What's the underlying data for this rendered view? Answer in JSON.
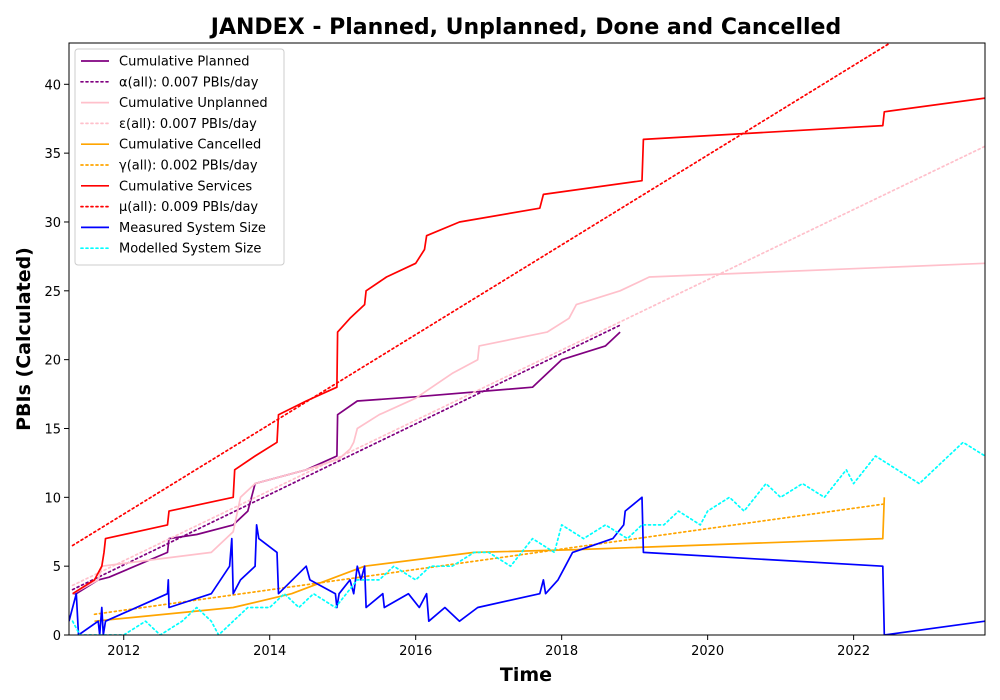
{
  "chart_data": {
    "type": "line",
    "title": "JANDEX - Planned, Unplanned, Done  and Cancelled",
    "xlabel": "Time",
    "ylabel": "PBIs (Calculated)",
    "xlim": [
      2011.25,
      2023.8
    ],
    "ylim": [
      0,
      43
    ],
    "x_ticks": [
      2012,
      2014,
      2016,
      2018,
      2020,
      2022
    ],
    "y_ticks": [
      0,
      5,
      10,
      15,
      20,
      25,
      30,
      35,
      40
    ],
    "legend_position": "top-left",
    "grid": false,
    "series": [
      {
        "name": "Cumulative Planned",
        "color": "#800080",
        "style": "solid",
        "points": [
          [
            2011.3,
            3
          ],
          [
            2011.35,
            3
          ],
          [
            2011.65,
            4
          ],
          [
            2011.8,
            4.2
          ],
          [
            2012.6,
            6
          ],
          [
            2012.62,
            7
          ],
          [
            2013.0,
            7.3
          ],
          [
            2013.5,
            8
          ],
          [
            2013.7,
            9
          ],
          [
            2013.75,
            10
          ],
          [
            2013.8,
            11
          ],
          [
            2014.5,
            12
          ],
          [
            2014.92,
            13
          ],
          [
            2014.93,
            16
          ],
          [
            2015.2,
            17
          ],
          [
            2016.0,
            17.3
          ],
          [
            2017.6,
            18
          ],
          [
            2018.0,
            20
          ],
          [
            2018.6,
            21
          ],
          [
            2018.8,
            22
          ]
        ]
      },
      {
        "name": "α(all): 0.007 PBIs/day",
        "color": "#800080",
        "style": "dotted",
        "points": [
          [
            2011.3,
            3.3
          ],
          [
            2018.8,
            22.5
          ]
        ]
      },
      {
        "name": "Cumulative Unplanned",
        "color": "#ffc0cb",
        "style": "solid",
        "points": [
          [
            2011.3,
            3
          ],
          [
            2011.65,
            4
          ],
          [
            2011.7,
            5
          ],
          [
            2012.0,
            5.2
          ],
          [
            2012.6,
            5.6
          ],
          [
            2013.2,
            6
          ],
          [
            2013.5,
            7.5
          ],
          [
            2013.6,
            10
          ],
          [
            2013.8,
            11
          ],
          [
            2014.5,
            12
          ],
          [
            2014.95,
            12.8
          ],
          [
            2015.1,
            13.5
          ],
          [
            2015.15,
            14
          ],
          [
            2015.2,
            15
          ],
          [
            2015.5,
            16
          ],
          [
            2016.0,
            17.2
          ],
          [
            2016.5,
            19
          ],
          [
            2016.85,
            20
          ],
          [
            2016.87,
            21
          ],
          [
            2017.8,
            22
          ],
          [
            2018.1,
            23
          ],
          [
            2018.2,
            24
          ],
          [
            2018.8,
            25
          ],
          [
            2019.2,
            26
          ],
          [
            2023.8,
            27
          ]
        ]
      },
      {
        "name": "ε(all): 0.007 PBIs/day",
        "color": "#ffc0cb",
        "style": "dotted",
        "points": [
          [
            2011.3,
            3.6
          ],
          [
            2023.8,
            35.5
          ]
        ]
      },
      {
        "name": "Cumulative Cancelled",
        "color": "#ffa500",
        "style": "solid",
        "points": [
          [
            2011.6,
            1
          ],
          [
            2013.5,
            2
          ],
          [
            2014.3,
            3
          ],
          [
            2015.3,
            5
          ],
          [
            2016.8,
            6
          ],
          [
            2018.2,
            6.2
          ],
          [
            2022.4,
            7
          ],
          [
            2022.42,
            10
          ]
        ]
      },
      {
        "name": "γ(all): 0.002 PBIs/day",
        "color": "#ffa500",
        "style": "dotted",
        "points": [
          [
            2011.6,
            1.5
          ],
          [
            2022.4,
            9.5
          ]
        ]
      },
      {
        "name": "Cumulative Services",
        "color": "#ff0000",
        "style": "solid",
        "points": [
          [
            2011.3,
            3
          ],
          [
            2011.6,
            4
          ],
          [
            2011.7,
            5
          ],
          [
            2011.73,
            6
          ],
          [
            2011.75,
            7
          ],
          [
            2012.6,
            8
          ],
          [
            2012.62,
            9
          ],
          [
            2013.5,
            10
          ],
          [
            2013.52,
            12
          ],
          [
            2013.8,
            13
          ],
          [
            2014.1,
            14
          ],
          [
            2014.12,
            16
          ],
          [
            2014.5,
            17
          ],
          [
            2014.92,
            18
          ],
          [
            2014.93,
            22
          ],
          [
            2015.1,
            23
          ],
          [
            2015.3,
            24
          ],
          [
            2015.32,
            25
          ],
          [
            2015.6,
            26
          ],
          [
            2016.0,
            27
          ],
          [
            2016.12,
            28
          ],
          [
            2016.15,
            29
          ],
          [
            2016.6,
            30
          ],
          [
            2017.7,
            31
          ],
          [
            2017.75,
            32
          ],
          [
            2019.1,
            33
          ],
          [
            2019.12,
            36
          ],
          [
            2022.4,
            37
          ],
          [
            2022.42,
            38
          ],
          [
            2023.8,
            39
          ]
        ]
      },
      {
        "name": "μ(all): 0.009 PBIs/day",
        "color": "#ff0000",
        "style": "dotted",
        "points": [
          [
            2011.3,
            6.5
          ],
          [
            2022.5,
            43
          ]
        ]
      },
      {
        "name": "Measured System Size",
        "color": "#0000ff",
        "style": "solid",
        "points": [
          [
            2011.25,
            1
          ],
          [
            2011.35,
            3
          ],
          [
            2011.38,
            0
          ],
          [
            2011.65,
            1
          ],
          [
            2011.67,
            0
          ],
          [
            2011.7,
            2
          ],
          [
            2011.72,
            0
          ],
          [
            2011.75,
            1
          ],
          [
            2012.6,
            3
          ],
          [
            2012.61,
            4
          ],
          [
            2012.62,
            2
          ],
          [
            2013.2,
            3
          ],
          [
            2013.45,
            5
          ],
          [
            2013.48,
            7
          ],
          [
            2013.5,
            3
          ],
          [
            2013.6,
            4
          ],
          [
            2013.8,
            5
          ],
          [
            2013.82,
            8
          ],
          [
            2013.85,
            7
          ],
          [
            2014.1,
            6
          ],
          [
            2014.12,
            3
          ],
          [
            2014.5,
            5
          ],
          [
            2014.55,
            4
          ],
          [
            2014.9,
            3
          ],
          [
            2014.92,
            2
          ],
          [
            2014.95,
            3
          ],
          [
            2015.1,
            4
          ],
          [
            2015.15,
            3
          ],
          [
            2015.2,
            5
          ],
          [
            2015.25,
            4
          ],
          [
            2015.3,
            5
          ],
          [
            2015.32,
            2
          ],
          [
            2015.55,
            3
          ],
          [
            2015.57,
            2
          ],
          [
            2015.9,
            3
          ],
          [
            2016.05,
            2
          ],
          [
            2016.15,
            3
          ],
          [
            2016.18,
            1
          ],
          [
            2016.4,
            2
          ],
          [
            2016.6,
            1
          ],
          [
            2016.85,
            2
          ],
          [
            2017.7,
            3
          ],
          [
            2017.75,
            4
          ],
          [
            2017.78,
            3
          ],
          [
            2017.95,
            4
          ],
          [
            2018.05,
            5
          ],
          [
            2018.15,
            6
          ],
          [
            2018.7,
            7
          ],
          [
            2018.85,
            8
          ],
          [
            2018.87,
            9
          ],
          [
            2019.1,
            10
          ],
          [
            2019.12,
            6
          ],
          [
            2022.4,
            5
          ],
          [
            2022.42,
            0
          ],
          [
            2023.8,
            1
          ]
        ]
      },
      {
        "name": "Modelled System Size",
        "color": "#00ffff",
        "style": "dotted",
        "points": [
          [
            2011.3,
            1
          ],
          [
            2011.4,
            0
          ],
          [
            2012.0,
            0
          ],
          [
            2012.3,
            1
          ],
          [
            2012.5,
            0
          ],
          [
            2012.8,
            1
          ],
          [
            2013.0,
            2
          ],
          [
            2013.2,
            1
          ],
          [
            2013.3,
            0
          ],
          [
            2013.5,
            1
          ],
          [
            2013.7,
            2
          ],
          [
            2014.0,
            2
          ],
          [
            2014.2,
            3
          ],
          [
            2014.4,
            2
          ],
          [
            2014.6,
            3
          ],
          [
            2014.9,
            2
          ],
          [
            2015.2,
            4
          ],
          [
            2015.5,
            4
          ],
          [
            2015.7,
            5
          ],
          [
            2016.0,
            4
          ],
          [
            2016.2,
            5
          ],
          [
            2016.5,
            5
          ],
          [
            2016.8,
            6
          ],
          [
            2017.0,
            6
          ],
          [
            2017.3,
            5
          ],
          [
            2017.6,
            7
          ],
          [
            2017.9,
            6
          ],
          [
            2018.0,
            8
          ],
          [
            2018.3,
            7
          ],
          [
            2018.6,
            8
          ],
          [
            2018.9,
            7
          ],
          [
            2019.1,
            8
          ],
          [
            2019.4,
            8
          ],
          [
            2019.6,
            9
          ],
          [
            2019.9,
            8
          ],
          [
            2020.0,
            9
          ],
          [
            2020.3,
            10
          ],
          [
            2020.5,
            9
          ],
          [
            2020.8,
            11
          ],
          [
            2021.0,
            10
          ],
          [
            2021.3,
            11
          ],
          [
            2021.6,
            10
          ],
          [
            2021.9,
            12
          ],
          [
            2022.0,
            11
          ],
          [
            2022.3,
            13
          ],
          [
            2022.6,
            12
          ],
          [
            2022.9,
            11
          ],
          [
            2023.1,
            12
          ],
          [
            2023.3,
            13
          ],
          [
            2023.5,
            14
          ],
          [
            2023.8,
            13
          ]
        ]
      }
    ]
  }
}
